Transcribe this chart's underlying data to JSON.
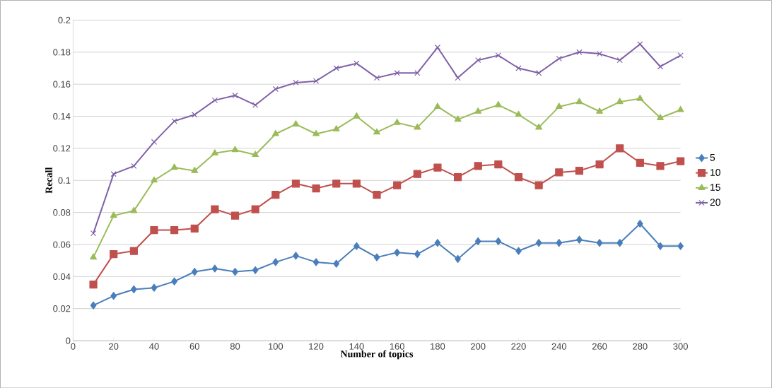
{
  "chart_data": {
    "type": "line",
    "xlabel": "Number of topics",
    "ylabel": "Recall",
    "x": [
      10,
      20,
      30,
      40,
      50,
      60,
      70,
      80,
      90,
      100,
      110,
      120,
      130,
      140,
      150,
      160,
      170,
      180,
      190,
      200,
      210,
      220,
      230,
      240,
      250,
      260,
      270,
      280,
      290,
      300
    ],
    "series": [
      {
        "name": "5",
        "color": "#4a7ebb",
        "marker": "diamond",
        "values": [
          0.022,
          0.028,
          0.032,
          0.033,
          0.037,
          0.043,
          0.045,
          0.043,
          0.044,
          0.049,
          0.053,
          0.049,
          0.048,
          0.059,
          0.052,
          0.055,
          0.054,
          0.061,
          0.051,
          0.062,
          0.062,
          0.056,
          0.061,
          0.061,
          0.063,
          0.061,
          0.061,
          0.073,
          0.059,
          0.059
        ]
      },
      {
        "name": "10",
        "color": "#c0504d",
        "marker": "square",
        "values": [
          0.035,
          0.054,
          0.056,
          0.069,
          0.069,
          0.07,
          0.082,
          0.078,
          0.082,
          0.091,
          0.098,
          0.095,
          0.098,
          0.098,
          0.091,
          0.097,
          0.104,
          0.108,
          0.102,
          0.109,
          0.11,
          0.102,
          0.097,
          0.105,
          0.106,
          0.11,
          0.12,
          0.111,
          0.109,
          0.112
        ]
      },
      {
        "name": "15",
        "color": "#9bbb59",
        "marker": "triangle",
        "values": [
          0.052,
          0.078,
          0.081,
          0.1,
          0.108,
          0.106,
          0.117,
          0.119,
          0.116,
          0.129,
          0.135,
          0.129,
          0.132,
          0.14,
          0.13,
          0.136,
          0.133,
          0.146,
          0.138,
          0.143,
          0.147,
          0.141,
          0.133,
          0.146,
          0.149,
          0.143,
          0.149,
          0.151,
          0.139,
          0.144
        ]
      },
      {
        "name": "20",
        "color": "#7f60a8",
        "marker": "cross",
        "values": [
          0.067,
          0.104,
          0.109,
          0.124,
          0.137,
          0.141,
          0.15,
          0.153,
          0.147,
          0.157,
          0.161,
          0.162,
          0.17,
          0.173,
          0.164,
          0.167,
          0.167,
          0.183,
          0.164,
          0.175,
          0.178,
          0.17,
          0.167,
          0.176,
          0.18,
          0.179,
          0.175,
          0.185,
          0.171,
          0.178
        ]
      }
    ],
    "xlim": [
      0,
      300
    ],
    "xticks": [
      0,
      20,
      40,
      60,
      80,
      100,
      120,
      140,
      160,
      180,
      200,
      220,
      240,
      260,
      280,
      300
    ],
    "ylim": [
      0,
      0.2
    ],
    "yticks": [
      0,
      0.02,
      0.04,
      0.06,
      0.08,
      0.1,
      0.12,
      0.14,
      0.16,
      0.18,
      0.2
    ],
    "grid": "y",
    "legend": "right",
    "line_style": "solid"
  }
}
